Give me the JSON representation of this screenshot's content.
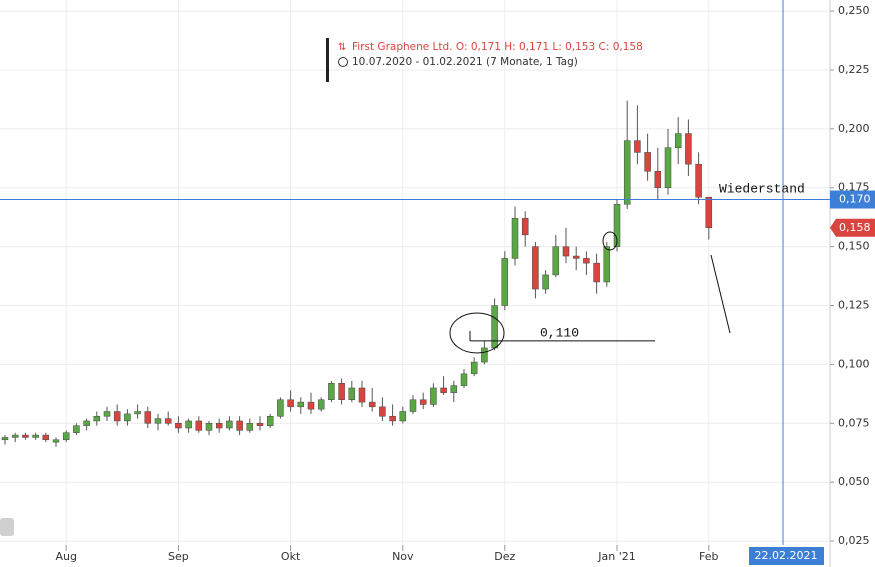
{
  "chart_data": {
    "type": "candlestick",
    "legend_title": "First Graphene Ltd.  O: 0,171  H: 0,171  L: 0,153  C: 0,158",
    "legend_range": "10.07.2020 - 01.02.2021  (7 Monate, 1 Tag)",
    "categories": [
      null,
      null,
      null,
      null,
      null,
      null,
      "Aug",
      null,
      null,
      null,
      null,
      null,
      null,
      null,
      null,
      null,
      null,
      "Sep",
      null,
      null,
      null,
      null,
      null,
      null,
      null,
      null,
      null,
      null,
      "Okt",
      null,
      null,
      null,
      null,
      null,
      null,
      null,
      null,
      null,
      null,
      "Nov",
      null,
      null,
      null,
      null,
      null,
      null,
      null,
      null,
      null,
      "Dez",
      null,
      null,
      null,
      null,
      null,
      null,
      null,
      null,
      null,
      null,
      "Jan '21",
      null,
      null,
      null,
      null,
      null,
      null,
      null,
      null,
      "Feb"
    ],
    "open": [
      0.068,
      0.069,
      0.07,
      0.069,
      0.07,
      0.067,
      0.068,
      0.071,
      0.074,
      0.076,
      0.078,
      0.08,
      0.076,
      0.079,
      0.08,
      0.075,
      0.077,
      0.075,
      0.073,
      0.076,
      0.072,
      0.075,
      0.073,
      0.076,
      0.072,
      0.075,
      0.074,
      0.078,
      0.085,
      0.082,
      0.084,
      0.081,
      0.085,
      0.092,
      0.085,
      0.09,
      0.084,
      0.082,
      0.078,
      0.076,
      0.08,
      0.085,
      0.083,
      0.09,
      0.088,
      0.091,
      0.096,
      0.101,
      0.107,
      0.125,
      0.145,
      0.162,
      0.15,
      0.132,
      0.138,
      0.15,
      0.146,
      0.145,
      0.143,
      0.135,
      0.15,
      0.168,
      0.195,
      0.19,
      0.182,
      0.175,
      0.192,
      0.198,
      0.185,
      0.171
    ],
    "high": [
      0.07,
      0.071,
      0.071,
      0.071,
      0.071,
      0.069,
      0.072,
      0.075,
      0.077,
      0.08,
      0.082,
      0.083,
      0.081,
      0.083,
      0.082,
      0.079,
      0.08,
      0.078,
      0.077,
      0.078,
      0.076,
      0.077,
      0.078,
      0.078,
      0.077,
      0.078,
      0.079,
      0.086,
      0.089,
      0.086,
      0.088,
      0.086,
      0.093,
      0.094,
      0.093,
      0.093,
      0.09,
      0.086,
      0.083,
      0.082,
      0.087,
      0.088,
      0.092,
      0.095,
      0.093,
      0.098,
      0.103,
      0.11,
      0.128,
      0.148,
      0.167,
      0.165,
      0.152,
      0.14,
      0.155,
      0.158,
      0.15,
      0.148,
      0.147,
      0.152,
      0.17,
      0.212,
      0.21,
      0.198,
      0.192,
      0.2,
      0.205,
      0.204,
      0.19,
      0.171
    ],
    "low": [
      0.066,
      0.067,
      0.068,
      0.068,
      0.067,
      0.065,
      0.067,
      0.07,
      0.072,
      0.074,
      0.076,
      0.074,
      0.074,
      0.077,
      0.073,
      0.072,
      0.074,
      0.071,
      0.071,
      0.071,
      0.07,
      0.071,
      0.072,
      0.07,
      0.071,
      0.072,
      0.073,
      0.077,
      0.08,
      0.079,
      0.079,
      0.08,
      0.084,
      0.083,
      0.084,
      0.082,
      0.08,
      0.076,
      0.074,
      0.075,
      0.079,
      0.081,
      0.082,
      0.087,
      0.084,
      0.09,
      0.095,
      0.1,
      0.106,
      0.123,
      0.142,
      0.15,
      0.128,
      0.13,
      0.137,
      0.143,
      0.14,
      0.138,
      0.13,
      0.133,
      0.148,
      0.166,
      0.185,
      0.178,
      0.17,
      0.172,
      0.185,
      0.18,
      0.168,
      0.153
    ],
    "close": [
      0.069,
      0.07,
      0.069,
      0.07,
      0.068,
      0.068,
      0.071,
      0.074,
      0.076,
      0.078,
      0.08,
      0.076,
      0.079,
      0.08,
      0.075,
      0.077,
      0.075,
      0.073,
      0.076,
      0.072,
      0.075,
      0.073,
      0.076,
      0.072,
      0.075,
      0.074,
      0.078,
      0.085,
      0.082,
      0.084,
      0.081,
      0.085,
      0.092,
      0.085,
      0.09,
      0.084,
      0.082,
      0.078,
      0.076,
      0.08,
      0.085,
      0.083,
      0.09,
      0.088,
      0.091,
      0.096,
      0.101,
      0.107,
      0.125,
      0.145,
      0.162,
      0.155,
      0.132,
      0.138,
      0.15,
      0.146,
      0.145,
      0.143,
      0.135,
      0.15,
      0.168,
      0.195,
      0.19,
      0.182,
      0.175,
      0.192,
      0.198,
      0.185,
      0.171,
      0.158
    ],
    "up_color": "#5aa845",
    "down_color": "#d9443f",
    "ylim": [
      0.014,
      0.2547
    ],
    "yticks": [
      {
        "value": 0.025,
        "label": "0,025"
      },
      {
        "value": 0.05,
        "label": "0,050"
      },
      {
        "value": 0.075,
        "label": "0,075"
      },
      {
        "value": 0.1,
        "label": "0,100"
      },
      {
        "value": 0.125,
        "label": "0,125"
      },
      {
        "value": 0.15,
        "label": "0,150"
      },
      {
        "value": 0.175,
        "label": "0,175"
      },
      {
        "value": 0.2,
        "label": "0,200"
      },
      {
        "value": 0.225,
        "label": "0,225"
      },
      {
        "value": 0.25,
        "label": "0,250"
      }
    ],
    "grid": true,
    "price_line": {
      "value": 0.17,
      "label": "0,170",
      "color": "#3d7fd6"
    },
    "last_price": {
      "value": 0.158,
      "label": "0,158"
    },
    "level_annotation": {
      "value": 0.11,
      "label": "0,110"
    },
    "resistance_label": "Wiederstand",
    "crosshair_date": "22.02.2021"
  }
}
